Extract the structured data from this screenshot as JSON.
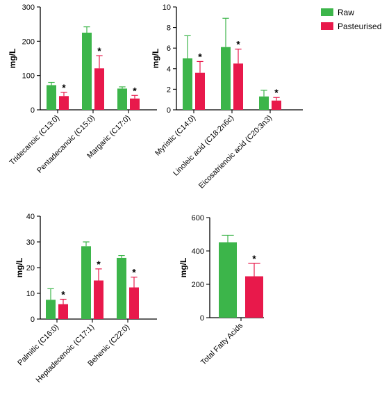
{
  "legend": {
    "position": "top-right",
    "items": [
      {
        "label": "Raw",
        "color": "#3cb54a"
      },
      {
        "label": "Pasteurised",
        "color": "#e8194b"
      }
    ]
  },
  "chart_data": [
    {
      "type": "bar",
      "ylabel": "mg/L",
      "ylim": [
        0,
        300
      ],
      "yticks": [
        0,
        100,
        200,
        300
      ],
      "categories": [
        "Tridecanoic (C13:0)",
        "Pentadecanoic (C15:0)",
        "Margaric (C17:0)"
      ],
      "series": [
        {
          "name": "Raw",
          "values": [
            72,
            225,
            62
          ],
          "errors": [
            8,
            17,
            5
          ]
        },
        {
          "name": "Pasteurised",
          "values": [
            40,
            121,
            33
          ],
          "errors": [
            11,
            37,
            9
          ]
        }
      ],
      "significance": [
        "*",
        "*",
        "*"
      ]
    },
    {
      "type": "bar",
      "ylabel": "mg/L",
      "ylim": [
        0,
        10
      ],
      "yticks": [
        0,
        2,
        4,
        6,
        8,
        10
      ],
      "categories": [
        "Myristic (C14:0)",
        "Linoleic acid (C18:2n6c)",
        "Eicosatrienoic acid (C20:3n3)"
      ],
      "series": [
        {
          "name": "Raw",
          "values": [
            5.0,
            6.1,
            1.3
          ],
          "errors": [
            2.2,
            2.8,
            0.6
          ]
        },
        {
          "name": "Pasteurised",
          "values": [
            3.6,
            4.5,
            0.9
          ],
          "errors": [
            1.1,
            1.4,
            0.3
          ]
        }
      ],
      "significance": [
        "*",
        "*",
        "*"
      ]
    },
    {
      "type": "bar",
      "ylabel": "mg/L",
      "ylim": [
        0,
        40
      ],
      "yticks": [
        0,
        10,
        20,
        30,
        40
      ],
      "categories": [
        "Palmitic (C16:0)",
        "Heptadecenoic (C17:1)",
        "Behenic (C22:0)"
      ],
      "series": [
        {
          "name": "Raw",
          "values": [
            7.5,
            28.3,
            23.8
          ],
          "errors": [
            4.3,
            1.7,
            0.9
          ]
        },
        {
          "name": "Pasteurised",
          "values": [
            5.8,
            15.0,
            12.3
          ],
          "errors": [
            1.9,
            4.5,
            4.0
          ]
        }
      ],
      "significance": [
        "*",
        "*",
        "*"
      ]
    },
    {
      "type": "bar",
      "ylabel": "mg/L",
      "ylim": [
        0,
        600
      ],
      "yticks": [
        0,
        200,
        400,
        600
      ],
      "categories": [
        "Total Fatty Acids"
      ],
      "series": [
        {
          "name": "Raw",
          "values": [
            452
          ],
          "errors": [
            42
          ]
        },
        {
          "name": "Pasteurised",
          "values": [
            248
          ],
          "errors": [
            78
          ]
        }
      ],
      "significance": [
        "*"
      ]
    }
  ]
}
